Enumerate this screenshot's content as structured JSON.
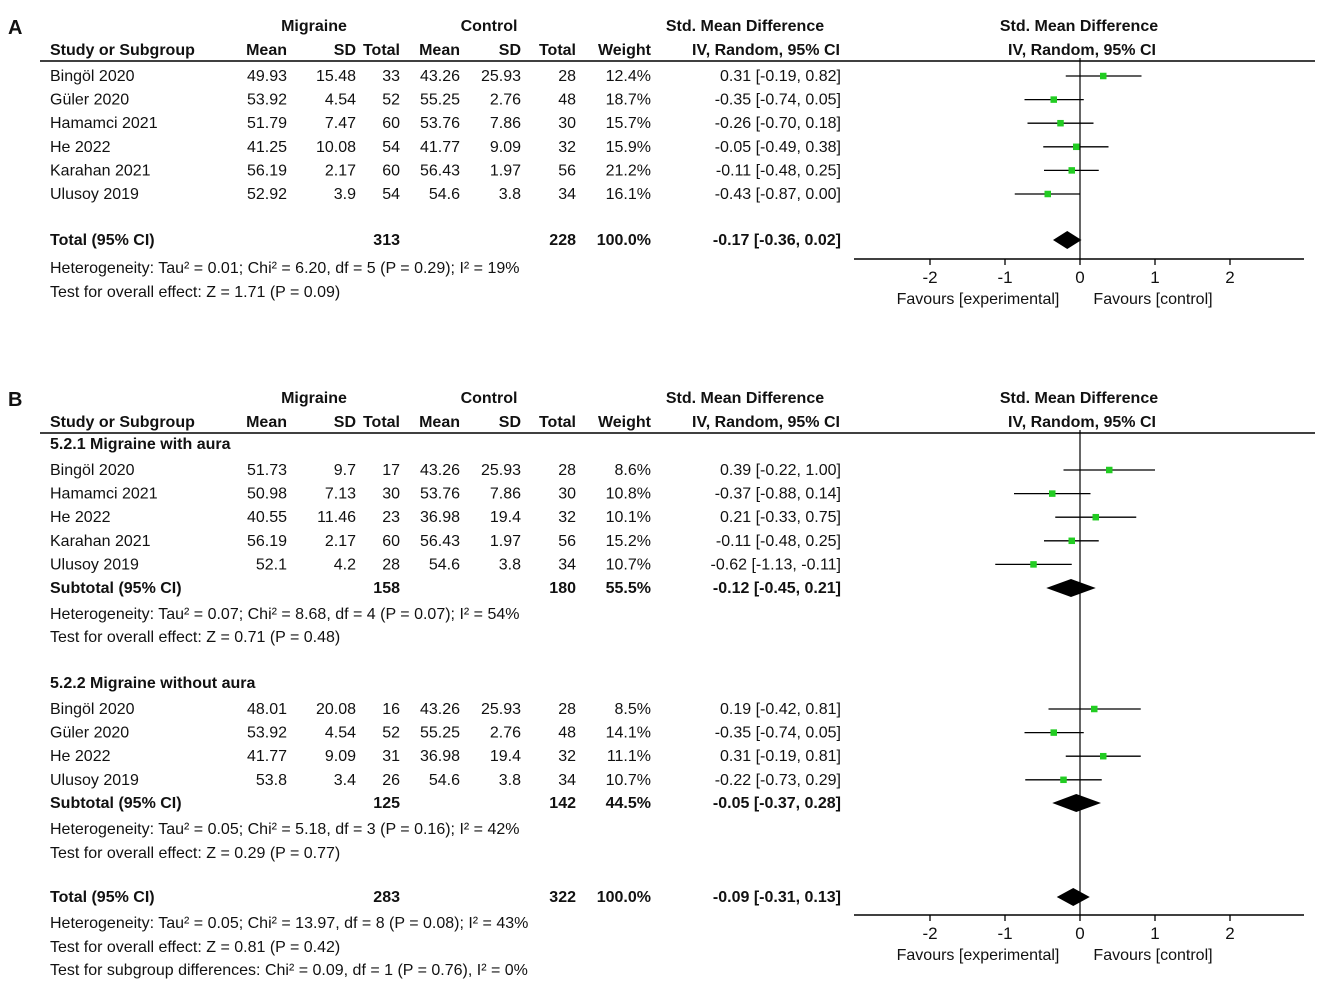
{
  "chart_data": [
    {
      "type": "forest",
      "panel_label": "A",
      "group1_label": "Migraine",
      "group2_label": "Control",
      "effect_header": "Std. Mean Difference",
      "method_header": "IV, Random, 95% CI",
      "columns": [
        "Study or Subgroup",
        "Mean",
        "SD",
        "Total",
        "Mean",
        "SD",
        "Total",
        "Weight",
        "IV, Random, 95% CI"
      ],
      "studies": [
        {
          "name": "Bingöl 2020",
          "m1": "49.93",
          "sd1": "15.48",
          "n1": "33",
          "m2": "43.26",
          "sd2": "25.93",
          "n2": "28",
          "weight": "12.4%",
          "ci": "0.31 [-0.19, 0.82]",
          "est": 0.31,
          "lo": -0.19,
          "hi": 0.82
        },
        {
          "name": "Güler 2020",
          "m1": "53.92",
          "sd1": "4.54",
          "n1": "52",
          "m2": "55.25",
          "sd2": "2.76",
          "n2": "48",
          "weight": "18.7%",
          "ci": "-0.35 [-0.74, 0.05]",
          "est": -0.35,
          "lo": -0.74,
          "hi": 0.05
        },
        {
          "name": "Hamamci 2021",
          "m1": "51.79",
          "sd1": "7.47",
          "n1": "60",
          "m2": "53.76",
          "sd2": "7.86",
          "n2": "30",
          "weight": "15.7%",
          "ci": "-0.26 [-0.70, 0.18]",
          "est": -0.26,
          "lo": -0.7,
          "hi": 0.18
        },
        {
          "name": "He 2022",
          "m1": "41.25",
          "sd1": "10.08",
          "n1": "54",
          "m2": "41.77",
          "sd2": "9.09",
          "n2": "32",
          "weight": "15.9%",
          "ci": "-0.05 [-0.49, 0.38]",
          "est": -0.05,
          "lo": -0.49,
          "hi": 0.38
        },
        {
          "name": "Karahan 2021",
          "m1": "56.19",
          "sd1": "2.17",
          "n1": "60",
          "m2": "56.43",
          "sd2": "1.97",
          "n2": "56",
          "weight": "21.2%",
          "ci": "-0.11 [-0.48, 0.25]",
          "est": -0.11,
          "lo": -0.48,
          "hi": 0.25
        },
        {
          "name": "Ulusoy 2019",
          "m1": "52.92",
          "sd1": "3.9",
          "n1": "54",
          "m2": "54.6",
          "sd2": "3.8",
          "n2": "34",
          "weight": "16.1%",
          "ci": "-0.43 [-0.87, 0.00]",
          "est": -0.43,
          "lo": -0.87,
          "hi": 0.0
        }
      ],
      "total": {
        "label": "Total (95% CI)",
        "n1": "313",
        "n2": "228",
        "weight": "100.0%",
        "ci": "-0.17 [-0.36, 0.02]",
        "est": -0.17,
        "lo": -0.36,
        "hi": 0.02
      },
      "heterogeneity": "Heterogeneity: Tau² = 0.01; Chi² = 6.20, df = 5 (P = 0.29); I² = 19%",
      "overall_test": "Test for overall effect: Z = 1.71 (P = 0.09)",
      "xlim": [
        -3,
        3
      ],
      "xticks": [
        -2,
        -1,
        0,
        1,
        2
      ],
      "xtick_labels": [
        "-2",
        "-1",
        "0",
        "1",
        "2"
      ],
      "favours_left": "Favours [experimental]",
      "favours_right": "Favours [control]"
    },
    {
      "type": "forest",
      "panel_label": "B",
      "group1_label": "Migraine",
      "group2_label": "Control",
      "effect_header": "Std. Mean Difference",
      "method_header": "IV, Random, 95% CI",
      "columns": [
        "Study or Subgroup",
        "Mean",
        "SD",
        "Total",
        "Mean",
        "SD",
        "Total",
        "Weight",
        "IV, Random, 95% CI"
      ],
      "subgroups": [
        {
          "title": "5.2.1 Migraine with aura",
          "studies": [
            {
              "name": "Bingöl 2020",
              "m1": "51.73",
              "sd1": "9.7",
              "n1": "17",
              "m2": "43.26",
              "sd2": "25.93",
              "n2": "28",
              "weight": "8.6%",
              "ci": "0.39 [-0.22, 1.00]",
              "est": 0.39,
              "lo": -0.22,
              "hi": 1.0
            },
            {
              "name": "Hamamci 2021",
              "m1": "50.98",
              "sd1": "7.13",
              "n1": "30",
              "m2": "53.76",
              "sd2": "7.86",
              "n2": "30",
              "weight": "10.8%",
              "ci": "-0.37 [-0.88, 0.14]",
              "est": -0.37,
              "lo": -0.88,
              "hi": 0.14
            },
            {
              "name": "He 2022",
              "m1": "40.55",
              "sd1": "11.46",
              "n1": "23",
              "m2": "36.98",
              "sd2": "19.4",
              "n2": "32",
              "weight": "10.1%",
              "ci": "0.21 [-0.33, 0.75]",
              "est": 0.21,
              "lo": -0.33,
              "hi": 0.75
            },
            {
              "name": "Karahan 2021",
              "m1": "56.19",
              "sd1": "2.17",
              "n1": "60",
              "m2": "56.43",
              "sd2": "1.97",
              "n2": "56",
              "weight": "15.2%",
              "ci": "-0.11 [-0.48, 0.25]",
              "est": -0.11,
              "lo": -0.48,
              "hi": 0.25
            },
            {
              "name": "Ulusoy 2019",
              "m1": "52.1",
              "sd1": "4.2",
              "n1": "28",
              "m2": "54.6",
              "sd2": "3.8",
              "n2": "34",
              "weight": "10.7%",
              "ci": "-0.62 [-1.13, -0.11]",
              "est": -0.62,
              "lo": -1.13,
              "hi": -0.11
            }
          ],
          "subtotal": {
            "label": "Subtotal (95% CI)",
            "n1": "158",
            "n2": "180",
            "weight": "55.5%",
            "ci": "-0.12 [-0.45, 0.21]",
            "est": -0.12,
            "lo": -0.45,
            "hi": 0.21
          },
          "heterogeneity": "Heterogeneity: Tau² = 0.07; Chi² = 8.68, df = 4 (P = 0.07); I² = 54%",
          "overall_test": "Test for overall effect: Z = 0.71 (P = 0.48)"
        },
        {
          "title": "5.2.2 Migraine without aura",
          "studies": [
            {
              "name": "Bingöl 2020",
              "m1": "48.01",
              "sd1": "20.08",
              "n1": "16",
              "m2": "43.26",
              "sd2": "25.93",
              "n2": "28",
              "weight": "8.5%",
              "ci": "0.19 [-0.42, 0.81]",
              "est": 0.19,
              "lo": -0.42,
              "hi": 0.81
            },
            {
              "name": "Güler 2020",
              "m1": "53.92",
              "sd1": "4.54",
              "n1": "52",
              "m2": "55.25",
              "sd2": "2.76",
              "n2": "48",
              "weight": "14.1%",
              "ci": "-0.35 [-0.74, 0.05]",
              "est": -0.35,
              "lo": -0.74,
              "hi": 0.05
            },
            {
              "name": "He 2022",
              "m1": "41.77",
              "sd1": "9.09",
              "n1": "31",
              "m2": "36.98",
              "sd2": "19.4",
              "n2": "32",
              "weight": "11.1%",
              "ci": "0.31 [-0.19, 0.81]",
              "est": 0.31,
              "lo": -0.19,
              "hi": 0.81
            },
            {
              "name": "Ulusoy 2019",
              "m1": "53.8",
              "sd1": "3.4",
              "n1": "26",
              "m2": "54.6",
              "sd2": "3.8",
              "n2": "34",
              "weight": "10.7%",
              "ci": "-0.22 [-0.73, 0.29]",
              "est": -0.22,
              "lo": -0.73,
              "hi": 0.29
            }
          ],
          "subtotal": {
            "label": "Subtotal (95% CI)",
            "n1": "125",
            "n2": "142",
            "weight": "44.5%",
            "ci": "-0.05 [-0.37, 0.28]",
            "est": -0.05,
            "lo": -0.37,
            "hi": 0.28
          },
          "heterogeneity": "Heterogeneity: Tau² = 0.05; Chi² = 5.18, df = 3 (P = 0.16); I² = 42%",
          "overall_test": "Test for overall effect: Z = 0.29 (P = 0.77)"
        }
      ],
      "total": {
        "label": "Total (95% CI)",
        "n1": "283",
        "n2": "322",
        "weight": "100.0%",
        "ci": "-0.09 [-0.31, 0.13]",
        "est": -0.09,
        "lo": -0.31,
        "hi": 0.13
      },
      "heterogeneity": "Heterogeneity: Tau² = 0.05; Chi² = 13.97, df = 8 (P = 0.08); I² = 43%",
      "overall_test": "Test for overall effect: Z = 0.81 (P = 0.42)",
      "subgroup_test": "Test for subgroup differences: Chi² = 0.09, df = 1 (P = 0.76), I² = 0%",
      "xlim": [
        -3,
        3
      ],
      "xticks": [
        -2,
        -1,
        0,
        1,
        2
      ],
      "xtick_labels": [
        "-2",
        "-1",
        "0",
        "1",
        "2"
      ],
      "favours_left": "Favours [experimental]",
      "favours_right": "Favours [control]"
    }
  ],
  "colors": {
    "square": "#22cc22",
    "diamond": "#000000",
    "line": "#000000",
    "text": "#111111"
  }
}
